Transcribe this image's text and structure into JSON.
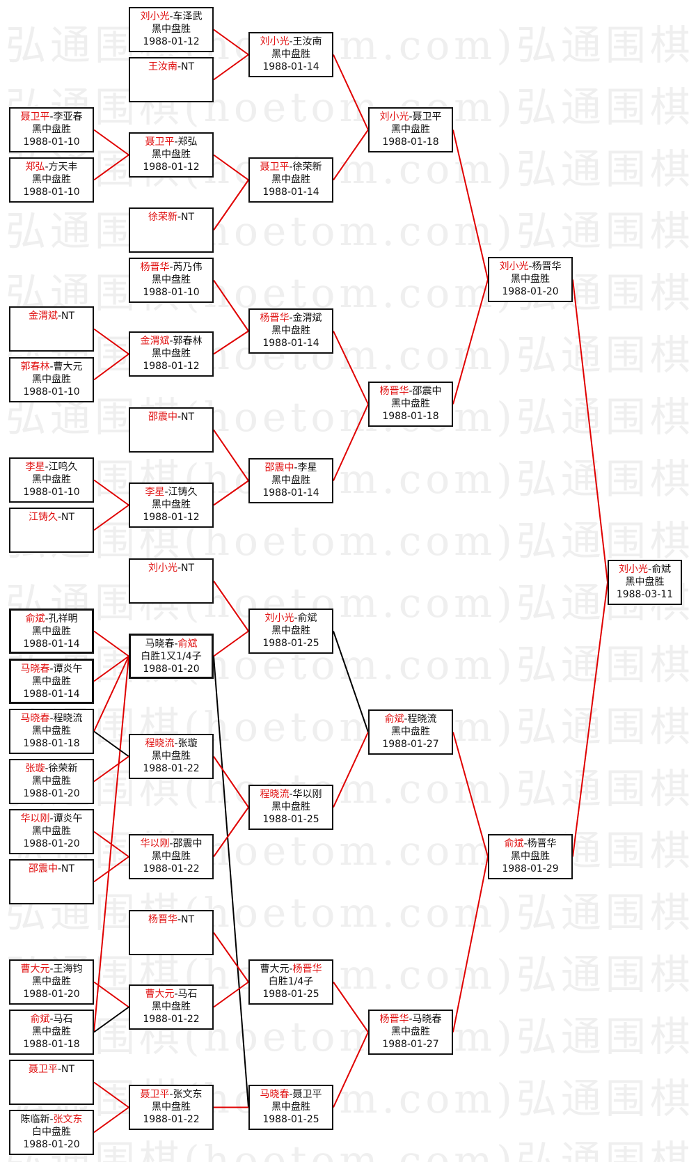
{
  "watermark": "弘通围棋(hoetom.com)弘通围棋(hoetom.com)",
  "colors": {
    "winner_text": "#e01010",
    "win_line": "#e00000",
    "loss_line": "#000000"
  },
  "matches": [
    {
      "line1": [
        {
          "text": "刘小光",
          "winner": true
        },
        {
          "text": "-车泽武"
        }
      ],
      "result": "黑中盘胜",
      "date": "1988-01-12"
    },
    {
      "line1": [
        {
          "text": "王汝南",
          "winner": true
        },
        {
          "text": "-NT"
        }
      ],
      "result": "",
      "date": ""
    },
    {
      "line1": [
        {
          "text": "聂卫平",
          "winner": true
        },
        {
          "text": "-李亚春"
        }
      ],
      "result": "黑中盘胜",
      "date": "1988-01-10"
    },
    {
      "line1": [
        {
          "text": "郑弘",
          "winner": true
        },
        {
          "text": "-方天丰"
        }
      ],
      "result": "黑中盘胜",
      "date": "1988-01-10"
    },
    {
      "line1": [
        {
          "text": "聂卫平",
          "winner": true
        },
        {
          "text": "-郑弘"
        }
      ],
      "result": "黑中盘胜",
      "date": "1988-01-12"
    },
    {
      "line1": [
        {
          "text": "徐荣新",
          "winner": true
        },
        {
          "text": "-NT"
        }
      ],
      "result": "",
      "date": ""
    },
    {
      "line1": [
        {
          "text": "杨晋华",
          "winner": true
        },
        {
          "text": "-芮乃伟"
        }
      ],
      "result": "黑中盘胜",
      "date": "1988-01-10"
    },
    {
      "line1": [
        {
          "text": "金渭斌",
          "winner": true
        },
        {
          "text": "-NT"
        }
      ],
      "result": "",
      "date": ""
    },
    {
      "line1": [
        {
          "text": "郭春林",
          "winner": true
        },
        {
          "text": "-曹大元"
        }
      ],
      "result": "黑中盘胜",
      "date": "1988-01-10"
    },
    {
      "line1": [
        {
          "text": "金渭斌",
          "winner": true
        },
        {
          "text": "-郭春林"
        }
      ],
      "result": "黑中盘胜",
      "date": "1988-01-12"
    },
    {
      "line1": [
        {
          "text": "邵震中",
          "winner": true
        },
        {
          "text": "-NT"
        }
      ],
      "result": "",
      "date": ""
    },
    {
      "line1": [
        {
          "text": "李星",
          "winner": true
        },
        {
          "text": "-江鸣久"
        }
      ],
      "result": "黑中盘胜",
      "date": "1988-01-10"
    },
    {
      "line1": [
        {
          "text": "江铸久",
          "winner": true
        },
        {
          "text": "-NT"
        }
      ],
      "result": "",
      "date": ""
    },
    {
      "line1": [
        {
          "text": "李星",
          "winner": true
        },
        {
          "text": "-江铸久"
        }
      ],
      "result": "黑中盘胜",
      "date": "1988-01-12"
    },
    {
      "line1": [
        {
          "text": "刘小光",
          "winner": true
        },
        {
          "text": "-王汝南"
        }
      ],
      "result": "黑中盘胜",
      "date": "1988-01-14"
    },
    {
      "line1": [
        {
          "text": "聂卫平",
          "winner": true
        },
        {
          "text": "-徐荣新"
        }
      ],
      "result": "黑中盘胜",
      "date": "1988-01-14"
    },
    {
      "line1": [
        {
          "text": "杨晋华",
          "winner": true
        },
        {
          "text": "-金渭斌"
        }
      ],
      "result": "黑中盘胜",
      "date": "1988-01-14"
    },
    {
      "line1": [
        {
          "text": "邵震中",
          "winner": true
        },
        {
          "text": "-李星"
        }
      ],
      "result": "黑中盘胜",
      "date": "1988-01-14"
    },
    {
      "line1": [
        {
          "text": "刘小光",
          "winner": true
        },
        {
          "text": "-聂卫平"
        }
      ],
      "result": "黑中盘胜",
      "date": "1988-01-18"
    },
    {
      "line1": [
        {
          "text": "杨晋华",
          "winner": true
        },
        {
          "text": "-邵震中"
        }
      ],
      "result": "黑中盘胜",
      "date": "1988-01-18"
    },
    {
      "line1": [
        {
          "text": "刘小光",
          "winner": true
        },
        {
          "text": "-杨晋华"
        }
      ],
      "result": "黑中盘胜",
      "date": "1988-01-20"
    },
    {
      "line1": [
        {
          "text": "刘小光",
          "winner": true
        },
        {
          "text": "-俞斌"
        }
      ],
      "result": "黑中盘胜",
      "date": "1988-03-11"
    },
    {
      "line1": [
        {
          "text": "刘小光",
          "winner": true
        },
        {
          "text": "-NT"
        }
      ],
      "result": "",
      "date": ""
    },
    {
      "line1": [
        {
          "text": "俞斌",
          "winner": true
        },
        {
          "text": "-孔祥明"
        }
      ],
      "result": "黑中盘胜",
      "date": "1988-01-14"
    },
    {
      "line1": [
        {
          "text": "马晓春",
          "winner": true
        },
        {
          "text": "-谭炎午"
        }
      ],
      "result": "黑中盘胜",
      "date": "1988-01-14"
    },
    {
      "line1": [
        {
          "text": "马晓春",
          "winner": true
        },
        {
          "text": "-程晓流"
        }
      ],
      "result": "黑中盘胜",
      "date": "1988-01-18"
    },
    {
      "line1": [
        {
          "text": "张璇",
          "winner": true
        },
        {
          "text": "-徐荣新"
        }
      ],
      "result": "黑中盘胜",
      "date": "1988-01-20"
    },
    {
      "line1": [
        {
          "text": "华以刚",
          "winner": true
        },
        {
          "text": "-谭炎午"
        }
      ],
      "result": "黑中盘胜",
      "date": "1988-01-20"
    },
    {
      "line1": [
        {
          "text": "邵震中",
          "winner": true
        },
        {
          "text": "-NT"
        }
      ],
      "result": "",
      "date": ""
    },
    {
      "line1": [
        {
          "text": "曹大元",
          "winner": true
        },
        {
          "text": "-王海钧"
        }
      ],
      "result": "黑中盘胜",
      "date": "1988-01-20"
    },
    {
      "line1": [
        {
          "text": "俞斌",
          "winner": true
        },
        {
          "text": "-马石"
        }
      ],
      "result": "黑中盘胜",
      "date": "1988-01-18"
    },
    {
      "line1": [
        {
          "text": "聂卫平",
          "winner": true
        },
        {
          "text": "-NT"
        }
      ],
      "result": "",
      "date": ""
    },
    {
      "line1": [
        {
          "text": "陈临新-"
        },
        {
          "text": "张文东",
          "winner": true
        }
      ],
      "result": "白中盘胜",
      "date": "1988-01-20"
    },
    {
      "line1": [
        {
          "text": "马晓春-"
        },
        {
          "text": "俞斌",
          "winner": true
        }
      ],
      "result": "白胜1又1/4子",
      "date": "1988-01-20"
    },
    {
      "line1": [
        {
          "text": "程晓流",
          "winner": true
        },
        {
          "text": "-张璇"
        }
      ],
      "result": "黑中盘胜",
      "date": "1988-01-22"
    },
    {
      "line1": [
        {
          "text": "华以刚",
          "winner": true
        },
        {
          "text": "-邵震中"
        }
      ],
      "result": "黑中盘胜",
      "date": "1988-01-22"
    },
    {
      "line1": [
        {
          "text": "杨晋华",
          "winner": true
        },
        {
          "text": "-NT"
        }
      ],
      "result": "",
      "date": ""
    },
    {
      "line1": [
        {
          "text": "曹大元",
          "winner": true
        },
        {
          "text": "-马石"
        }
      ],
      "result": "黑中盘胜",
      "date": "1988-01-22"
    },
    {
      "line1": [
        {
          "text": "聂卫平",
          "winner": true
        },
        {
          "text": "-张文东"
        }
      ],
      "result": "黑中盘胜",
      "date": "1988-01-22"
    },
    {
      "line1": [
        {
          "text": "刘小光",
          "winner": true
        },
        {
          "text": "-俞斌"
        }
      ],
      "result": "黑中盘胜",
      "date": "1988-01-25"
    },
    {
      "line1": [
        {
          "text": "程晓流",
          "winner": true
        },
        {
          "text": "-华以刚"
        }
      ],
      "result": "黑中盘胜",
      "date": "1988-01-25"
    },
    {
      "line1": [
        {
          "text": "曹大元-"
        },
        {
          "text": "杨晋华",
          "winner": true
        }
      ],
      "result": "白胜1/4子",
      "date": "1988-01-25"
    },
    {
      "line1": [
        {
          "text": "马晓春",
          "winner": true
        },
        {
          "text": "-聂卫平"
        }
      ],
      "result": "黑中盘胜",
      "date": "1988-01-25"
    },
    {
      "line1": [
        {
          "text": "俞斌",
          "winner": true
        },
        {
          "text": "-程晓流"
        }
      ],
      "result": "黑中盘胜",
      "date": "1988-01-27"
    },
    {
      "line1": [
        {
          "text": "杨晋华",
          "winner": true
        },
        {
          "text": "-马晓春"
        }
      ],
      "result": "黑中盘胜",
      "date": "1988-01-27"
    },
    {
      "line1": [
        {
          "text": "俞斌",
          "winner": true
        },
        {
          "text": "-杨晋华"
        }
      ],
      "result": "黑中盘胜",
      "date": "1988-01-29"
    }
  ],
  "connections": [
    {
      "from": 0,
      "to": 14,
      "color": "#e00000"
    },
    {
      "from": 1,
      "to": 14,
      "color": "#e00000"
    },
    {
      "from": 2,
      "to": 4,
      "color": "#e00000"
    },
    {
      "from": 3,
      "to": 4,
      "color": "#e00000"
    },
    {
      "from": 4,
      "to": 15,
      "color": "#e00000"
    },
    {
      "from": 5,
      "to": 15,
      "color": "#e00000"
    },
    {
      "from": 7,
      "to": 9,
      "color": "#e00000"
    },
    {
      "from": 8,
      "to": 9,
      "color": "#e00000"
    },
    {
      "from": 6,
      "to": 16,
      "color": "#e00000"
    },
    {
      "from": 9,
      "to": 16,
      "color": "#e00000"
    },
    {
      "from": 11,
      "to": 13,
      "color": "#e00000"
    },
    {
      "from": 12,
      "to": 13,
      "color": "#e00000"
    },
    {
      "from": 10,
      "to": 17,
      "color": "#e00000"
    },
    {
      "from": 13,
      "to": 17,
      "color": "#e00000"
    },
    {
      "from": 14,
      "to": 18,
      "color": "#e00000"
    },
    {
      "from": 15,
      "to": 18,
      "color": "#e00000"
    },
    {
      "from": 16,
      "to": 19,
      "color": "#e00000"
    },
    {
      "from": 17,
      "to": 19,
      "color": "#e00000"
    },
    {
      "from": 18,
      "to": 20,
      "color": "#e00000"
    },
    {
      "from": 19,
      "to": 20,
      "color": "#e00000"
    },
    {
      "from": 20,
      "to": 21,
      "color": "#e00000"
    },
    {
      "from": 23,
      "to": 33,
      "color": "#e00000"
    },
    {
      "from": 24,
      "to": 33,
      "color": "#e00000"
    },
    {
      "from": 25,
      "to": 33,
      "color": "#e00000"
    },
    {
      "from": 30,
      "to": 33,
      "color": "#e00000"
    },
    {
      "from": 25,
      "to": 34,
      "color": "#000000"
    },
    {
      "from": 26,
      "to": 34,
      "color": "#e00000"
    },
    {
      "from": 27,
      "to": 35,
      "color": "#e00000"
    },
    {
      "from": 28,
      "to": 35,
      "color": "#e00000"
    },
    {
      "from": 29,
      "to": 37,
      "color": "#e00000"
    },
    {
      "from": 30,
      "to": 37,
      "color": "#000000"
    },
    {
      "from": 31,
      "to": 38,
      "color": "#e00000"
    },
    {
      "from": 32,
      "to": 38,
      "color": "#e00000"
    },
    {
      "from": 22,
      "to": 39,
      "color": "#e00000"
    },
    {
      "from": 33,
      "to": 39,
      "color": "#e00000"
    },
    {
      "from": 33,
      "to": 42,
      "color": "#000000"
    },
    {
      "from": 34,
      "to": 40,
      "color": "#e00000"
    },
    {
      "from": 35,
      "to": 40,
      "color": "#e00000"
    },
    {
      "from": 36,
      "to": 41,
      "color": "#e00000"
    },
    {
      "from": 37,
      "to": 41,
      "color": "#e00000"
    },
    {
      "from": 38,
      "to": 42,
      "color": "#e00000"
    },
    {
      "from": 39,
      "to": 43,
      "color": "#000000"
    },
    {
      "from": 40,
      "to": 43,
      "color": "#e00000"
    },
    {
      "from": 41,
      "to": 44,
      "color": "#e00000"
    },
    {
      "from": 42,
      "to": 44,
      "color": "#e00000"
    },
    {
      "from": 43,
      "to": 45,
      "color": "#e00000"
    },
    {
      "from": 44,
      "to": 45,
      "color": "#e00000"
    },
    {
      "from": 45,
      "to": 21,
      "color": "#e00000"
    }
  ]
}
